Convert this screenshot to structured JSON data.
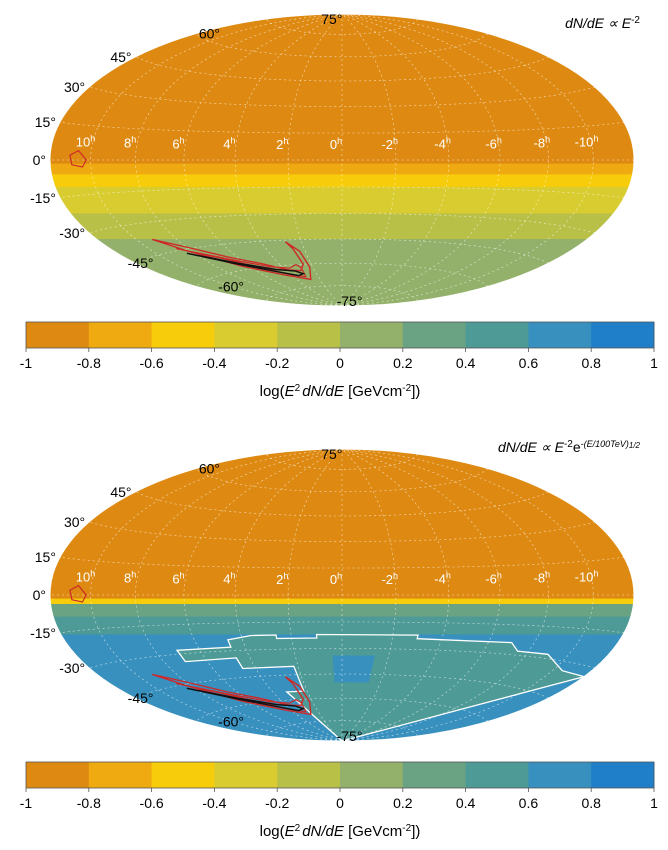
{
  "chart_data": [
    {
      "type": "heatmap",
      "title_main": "dN/dE ∝ E",
      "title_sup": "-2",
      "title_extra": "",
      "projection": "Aitoff/Hammer all-sky (equatorial)",
      "ra_labels": [
        "10",
        "8",
        "6",
        "4",
        "2",
        "0",
        "-2",
        "-4",
        "-6",
        "-8",
        "-10"
      ],
      "ra_unit_sup": "h",
      "dec_labels": [
        "75°",
        "60°",
        "45°",
        "30°",
        "15°",
        "0°",
        "-15°",
        "-30°",
        "-45°",
        "-60°",
        "-75°"
      ],
      "dec_values": [
        75,
        60,
        45,
        30,
        15,
        0,
        -15,
        -30,
        -45,
        -60,
        -75
      ],
      "bands": [
        {
          "dec_from": 90,
          "dec_to": -2,
          "value": -0.9
        },
        {
          "dec_from": -2,
          "dec_to": -8,
          "value": -0.7
        },
        {
          "dec_from": -8,
          "dec_to": -15,
          "value": -0.5
        },
        {
          "dec_from": -15,
          "dec_to": -30,
          "value": -0.3
        },
        {
          "dec_from": -30,
          "dec_to": -45,
          "value": -0.1
        },
        {
          "dec_from": -45,
          "dec_to": -90,
          "value": 0.1
        }
      ],
      "contours": "red and black confidence contours near RA 3h–9h, Dec -40° to -75°; small red contour near RA 10h, Dec 0°",
      "colorbar": {
        "ticks": [
          "-1",
          "-0.8",
          "-0.6",
          "-0.4",
          "-0.2",
          "0",
          "0.2",
          "0.4",
          "0.6",
          "0.8",
          "1"
        ],
        "label_pre": "log(",
        "label_E": "E",
        "label_sup1": "2",
        "label_mid": "dN/dE",
        "label_unit": " [GeVcm",
        "label_sup2": "-2",
        "label_end": "])"
      }
    },
    {
      "type": "heatmap",
      "title_main": "dN/dE ∝ E",
      "title_sup": "-2",
      "title_extra": "e",
      "title_extra_sup": "-(E/100TeV)",
      "title_extra_sup2": "1/2",
      "projection": "Aitoff/Hammer all-sky (equatorial)",
      "ra_labels": [
        "10",
        "8",
        "6",
        "4",
        "2",
        "0",
        "-2",
        "-4",
        "-6",
        "-8",
        "-10"
      ],
      "ra_unit_sup": "h",
      "dec_labels": [
        "75°",
        "60°",
        "45°",
        "30°",
        "15°",
        "0°",
        "-15°",
        "-30°",
        "-45°",
        "-60°",
        "-75°"
      ],
      "dec_values": [
        75,
        60,
        45,
        30,
        15,
        0,
        -15,
        -30,
        -45,
        -60,
        -75
      ],
      "bands": [
        {
          "dec_from": 90,
          "dec_to": -2,
          "value": -0.9
        },
        {
          "dec_from": -2,
          "dec_to": -5,
          "value": -0.5
        },
        {
          "dec_from": -5,
          "dec_to": -12,
          "value": 0.3
        },
        {
          "dec_from": -12,
          "dec_to": -22,
          "value": 0.5
        },
        {
          "dec_from": -22,
          "dec_to": -90,
          "value": 0.7
        }
      ],
      "contours": "white outline of region with lower value; red and black confidence contours near RA 3h–9h, Dec -40° to -75°",
      "colorbar": {
        "ticks": [
          "-1",
          "-0.8",
          "-0.6",
          "-0.4",
          "-0.2",
          "0",
          "0.2",
          "0.4",
          "0.6",
          "0.8",
          "1"
        ],
        "label_pre": "log(",
        "label_E": "E",
        "label_sup1": "2",
        "label_mid": "dN/dE",
        "label_unit": " [GeVcm",
        "label_sup2": "-2",
        "label_end": "])"
      }
    }
  ],
  "colormap": [
    "#de8a12",
    "#eeaa10",
    "#f7cc0a",
    "#d8cc30",
    "#b9c048",
    "#93b16a",
    "#6aa284",
    "#4e9a96",
    "#3890be",
    "#1f7fc8"
  ],
  "colors": {
    "contour_red": "#cc2a2a",
    "contour_black": "#111111",
    "region_white": "#ffffff",
    "grid": "#ffffff"
  }
}
